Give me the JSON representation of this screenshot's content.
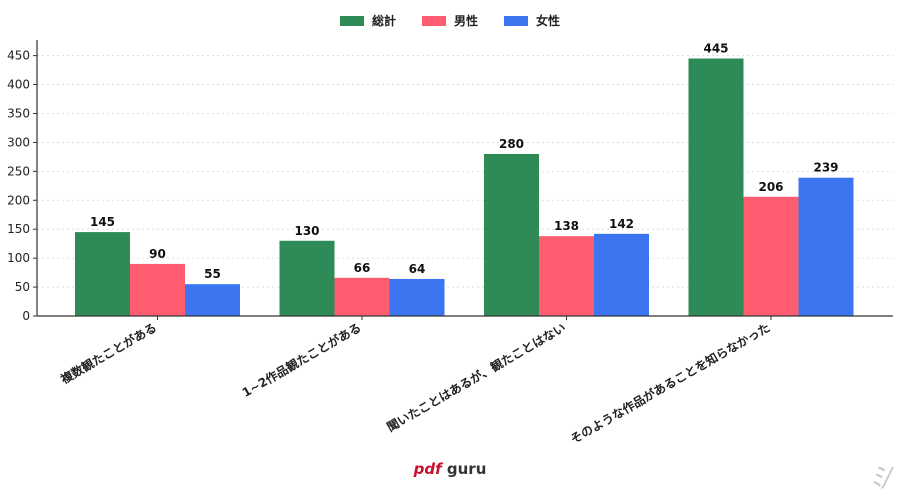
{
  "chart_data": {
    "type": "bar",
    "categories": [
      "複数観たことがある",
      "1~2作品観たことがある",
      "聞いたことはあるが、観たことはない",
      "そのような作品があることを知らなかった"
    ],
    "series": [
      {
        "name": "総計",
        "color": "#2e8b57",
        "values": [
          145,
          130,
          280,
          445
        ]
      },
      {
        "name": "男性",
        "color": "#ff5c6f",
        "values": [
          90,
          66,
          138,
          206
        ]
      },
      {
        "name": "女性",
        "color": "#3d74f0",
        "values": [
          55,
          64,
          142,
          239
        ]
      }
    ],
    "yticks": [
      0,
      50,
      100,
      150,
      200,
      250,
      300,
      350,
      400,
      450
    ],
    "ylim": [
      0,
      477
    ],
    "grid": true,
    "legend_position": "top-center"
  },
  "branding": {
    "pdf": "pdf",
    "guru": "guru",
    "corner_mark": "ﾐ/"
  }
}
